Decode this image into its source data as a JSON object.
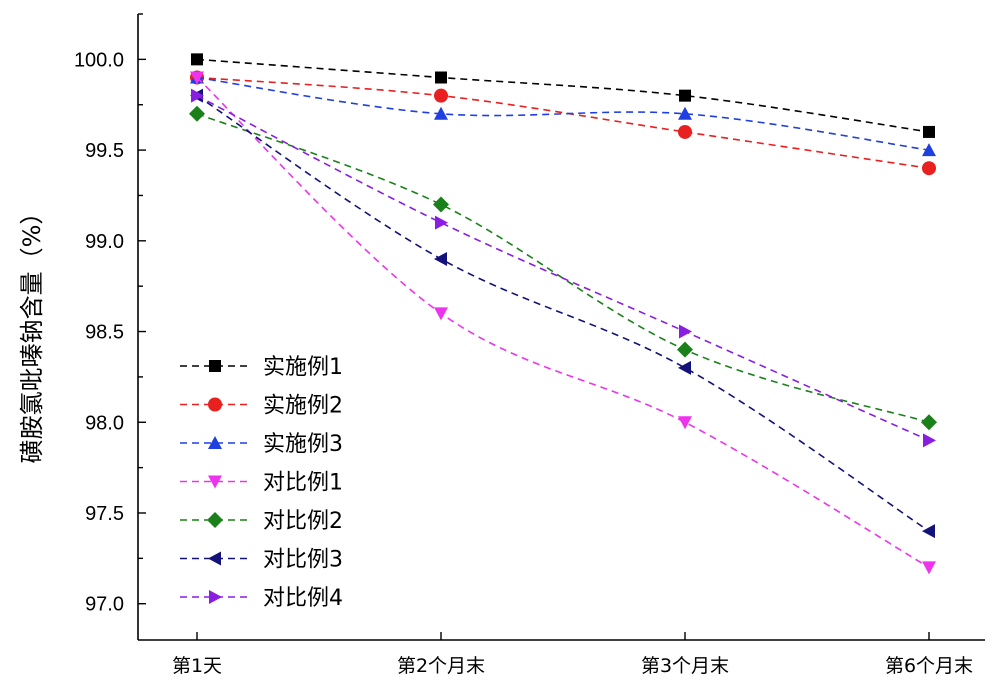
{
  "chart_data": {
    "type": "line",
    "ylabel": "磺胺氯吡嗪钠含量（%）",
    "xlabel": "",
    "categories": [
      "第1天",
      "第2个月末",
      "第3个月末",
      "第6个月末"
    ],
    "ylim": [
      96.8,
      100.25
    ],
    "yticks": [
      "97.0",
      "97.5",
      "98.0",
      "98.5",
      "99.0",
      "99.5",
      "100.0"
    ],
    "legend_position": "lower-left",
    "line_style": "dashed",
    "series": [
      {
        "name": "实施例1",
        "color": "#000000",
        "marker": "square",
        "values": [
          100.0,
          99.9,
          99.8,
          99.6
        ]
      },
      {
        "name": "实施例2",
        "color": "#e8201f",
        "marker": "circle",
        "values": [
          99.9,
          99.8,
          99.6,
          99.4
        ]
      },
      {
        "name": "实施例3",
        "color": "#1f3fe0",
        "marker": "triangle-up",
        "values": [
          99.9,
          99.7,
          99.7,
          99.5
        ]
      },
      {
        "name": "对比例1",
        "color": "#ee33ee",
        "marker": "triangle-down",
        "values": [
          99.9,
          98.6,
          98.0,
          97.2
        ]
      },
      {
        "name": "对比例2",
        "color": "#1a801a",
        "marker": "diamond",
        "values": [
          99.7,
          99.2,
          98.4,
          98.0
        ]
      },
      {
        "name": "对比例3",
        "color": "#12127a",
        "marker": "triangle-left",
        "values": [
          99.8,
          98.9,
          98.3,
          97.4
        ]
      },
      {
        "name": "对比例4",
        "color": "#8a1ee0",
        "marker": "triangle-right",
        "values": [
          99.8,
          99.1,
          98.5,
          97.9
        ]
      }
    ]
  }
}
